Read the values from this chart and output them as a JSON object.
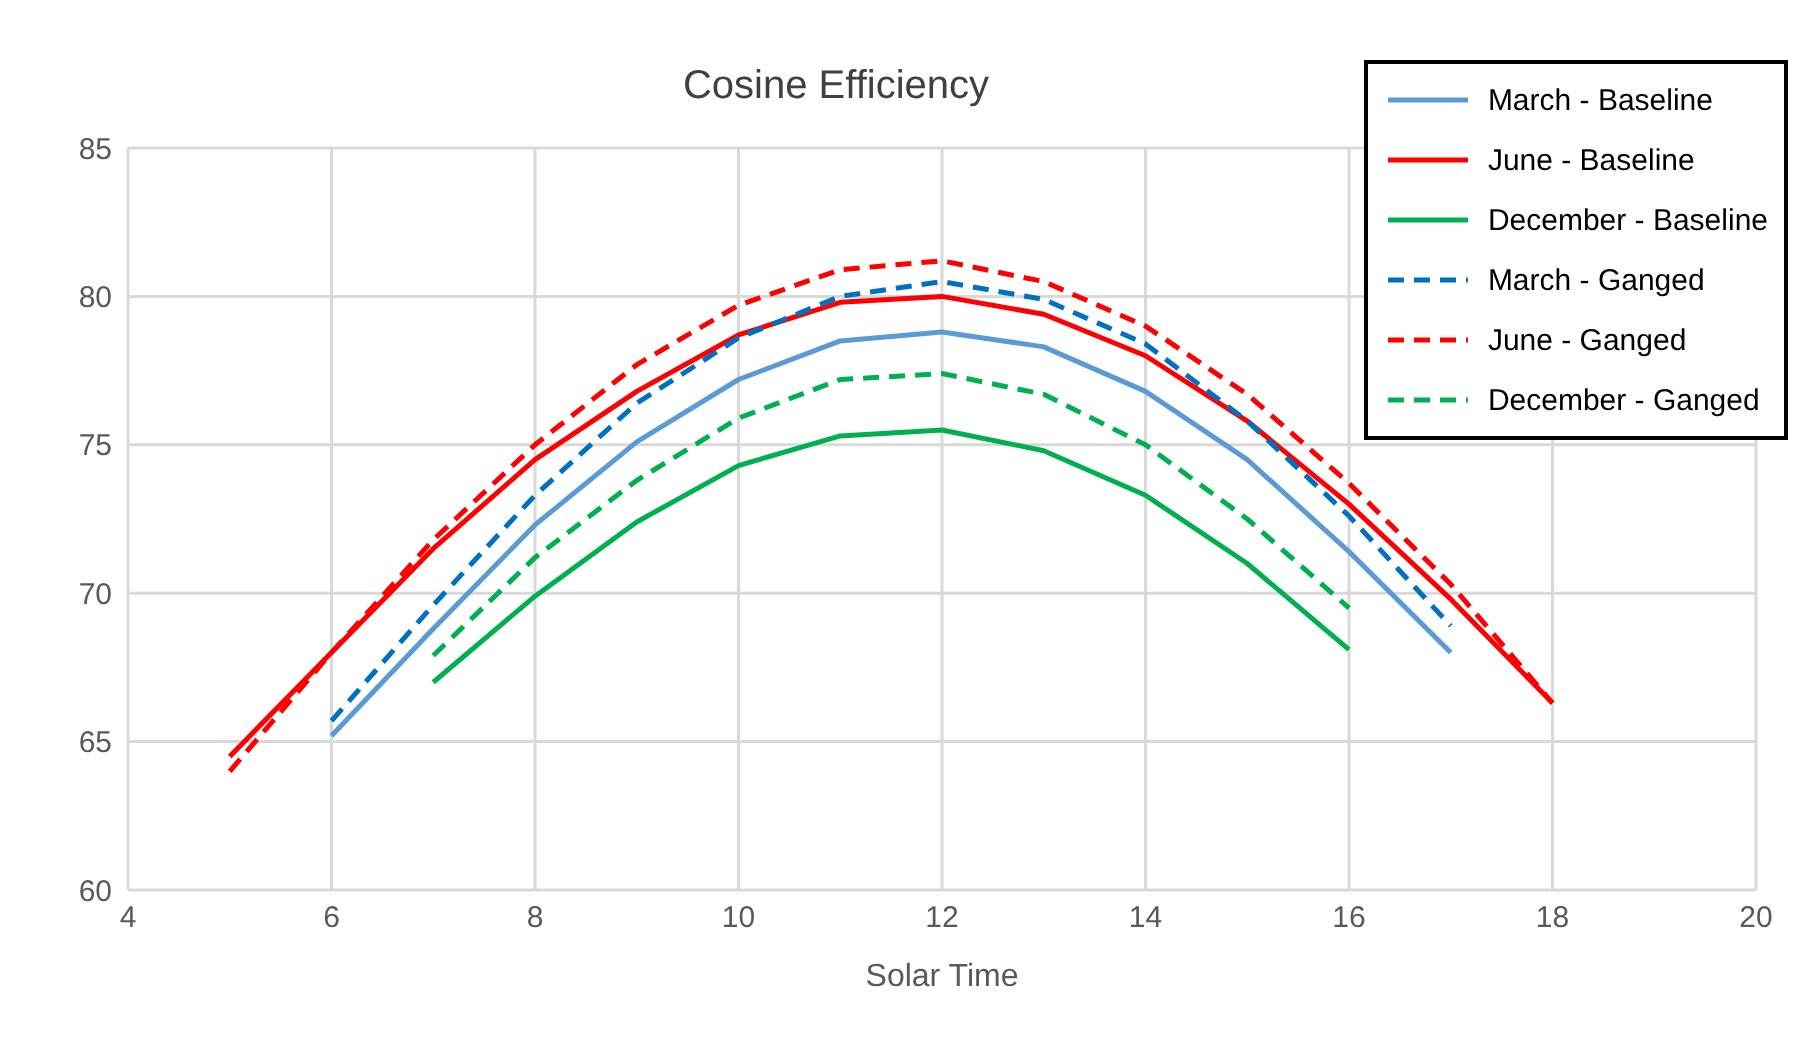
{
  "chart_data": {
    "type": "line",
    "title": "Cosine Efficiency",
    "xlabel": "Solar Time",
    "xlim": [
      4,
      20
    ],
    "xticks": [
      4,
      6,
      8,
      10,
      12,
      14,
      16,
      18,
      20
    ],
    "ylim": [
      60,
      85
    ],
    "yticks": [
      60,
      65,
      70,
      75,
      80,
      85
    ],
    "grid": true,
    "legend": "top right",
    "marker": "none",
    "series": [
      {
        "name": "March - Baseline",
        "color": "#5b9bd5",
        "line_style": "solid",
        "x": [
          6,
          7,
          8,
          9,
          10,
          11,
          12,
          13,
          14,
          15,
          16,
          17
        ],
        "values": [
          65.2,
          68.8,
          72.3,
          75.1,
          77.2,
          78.5,
          78.8,
          78.3,
          76.8,
          74.5,
          71.4,
          68.0
        ]
      },
      {
        "name": "June - Baseline",
        "color": "#ff0000",
        "line_style": "solid",
        "x": [
          5,
          6,
          7,
          8,
          9,
          10,
          11,
          12,
          13,
          14,
          15,
          16,
          17,
          18
        ],
        "values": [
          64.5,
          68.0,
          71.5,
          74.5,
          76.8,
          78.7,
          79.8,
          80.0,
          79.4,
          78.0,
          75.8,
          73.0,
          69.8,
          66.3
        ]
      },
      {
        "name": "December - Baseline",
        "color": "#00b050",
        "line_style": "solid",
        "x": [
          7,
          8,
          9,
          10,
          11,
          12,
          13,
          14,
          15,
          16
        ],
        "values": [
          67.0,
          69.9,
          72.4,
          74.3,
          75.3,
          75.5,
          74.8,
          73.3,
          71.0,
          68.1
        ]
      },
      {
        "name": "March - Ganged",
        "color": "#0070c0",
        "line_style": "dashed",
        "x": [
          6,
          7,
          8,
          9,
          10,
          11,
          12,
          13,
          14,
          15,
          16,
          17
        ],
        "values": [
          65.7,
          69.6,
          73.3,
          76.4,
          78.6,
          80.0,
          80.5,
          79.9,
          78.4,
          75.8,
          72.6,
          68.9
        ]
      },
      {
        "name": "June - Ganged",
        "color": "#ff0000",
        "line_style": "dashed",
        "x": [
          5,
          6,
          7,
          8,
          9,
          10,
          11,
          12,
          13,
          14,
          15,
          16,
          17,
          18
        ],
        "values": [
          64.0,
          68.0,
          71.8,
          75.0,
          77.7,
          79.7,
          80.9,
          81.2,
          80.5,
          79.0,
          76.7,
          73.7,
          70.3,
          66.3
        ]
      },
      {
        "name": "December - Ganged",
        "color": "#00b050",
        "line_style": "dashed",
        "x": [
          7,
          8,
          9,
          10,
          11,
          12,
          13,
          14,
          15,
          16
        ],
        "values": [
          67.9,
          71.2,
          73.8,
          75.9,
          77.2,
          77.4,
          76.7,
          75.0,
          72.5,
          69.5
        ]
      }
    ]
  }
}
